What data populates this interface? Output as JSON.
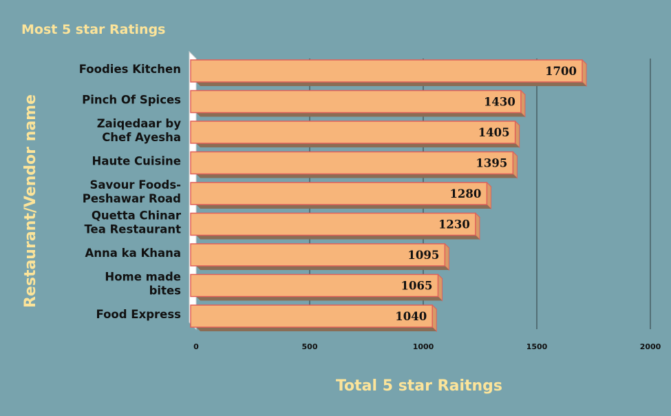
{
  "colors": {
    "background": "#78a3ad",
    "bar_front": "#f7b57a",
    "bar_edge": "#e0605a",
    "bar_side": "#d99a66",
    "title": "#fce49a"
  },
  "chart_data": {
    "type": "bar",
    "orientation": "horizontal",
    "title": "Most 5 star Ratings",
    "xlabel": "Total 5 star Raitngs",
    "ylabel": "Restaurant/Vendor name",
    "categories": [
      [
        "Foodies Kitchen"
      ],
      [
        "Pinch Of Spices"
      ],
      [
        "Zaiqedaar by",
        "Chef Ayesha"
      ],
      [
        "Haute Cuisine"
      ],
      [
        "Savour Foods-",
        "Peshawar Road"
      ],
      [
        "Quetta Chinar",
        "Tea Restaurant"
      ],
      [
        "Anna ka Khana"
      ],
      [
        "Home made",
        "bites"
      ],
      [
        "Food Express"
      ]
    ],
    "values": [
      1700,
      1430,
      1405,
      1395,
      1280,
      1230,
      1095,
      1065,
      1040
    ],
    "xlim": [
      0,
      2000
    ],
    "xticks": [
      0,
      500,
      1000,
      1500,
      2000
    ],
    "grid": true,
    "legend": "none"
  }
}
